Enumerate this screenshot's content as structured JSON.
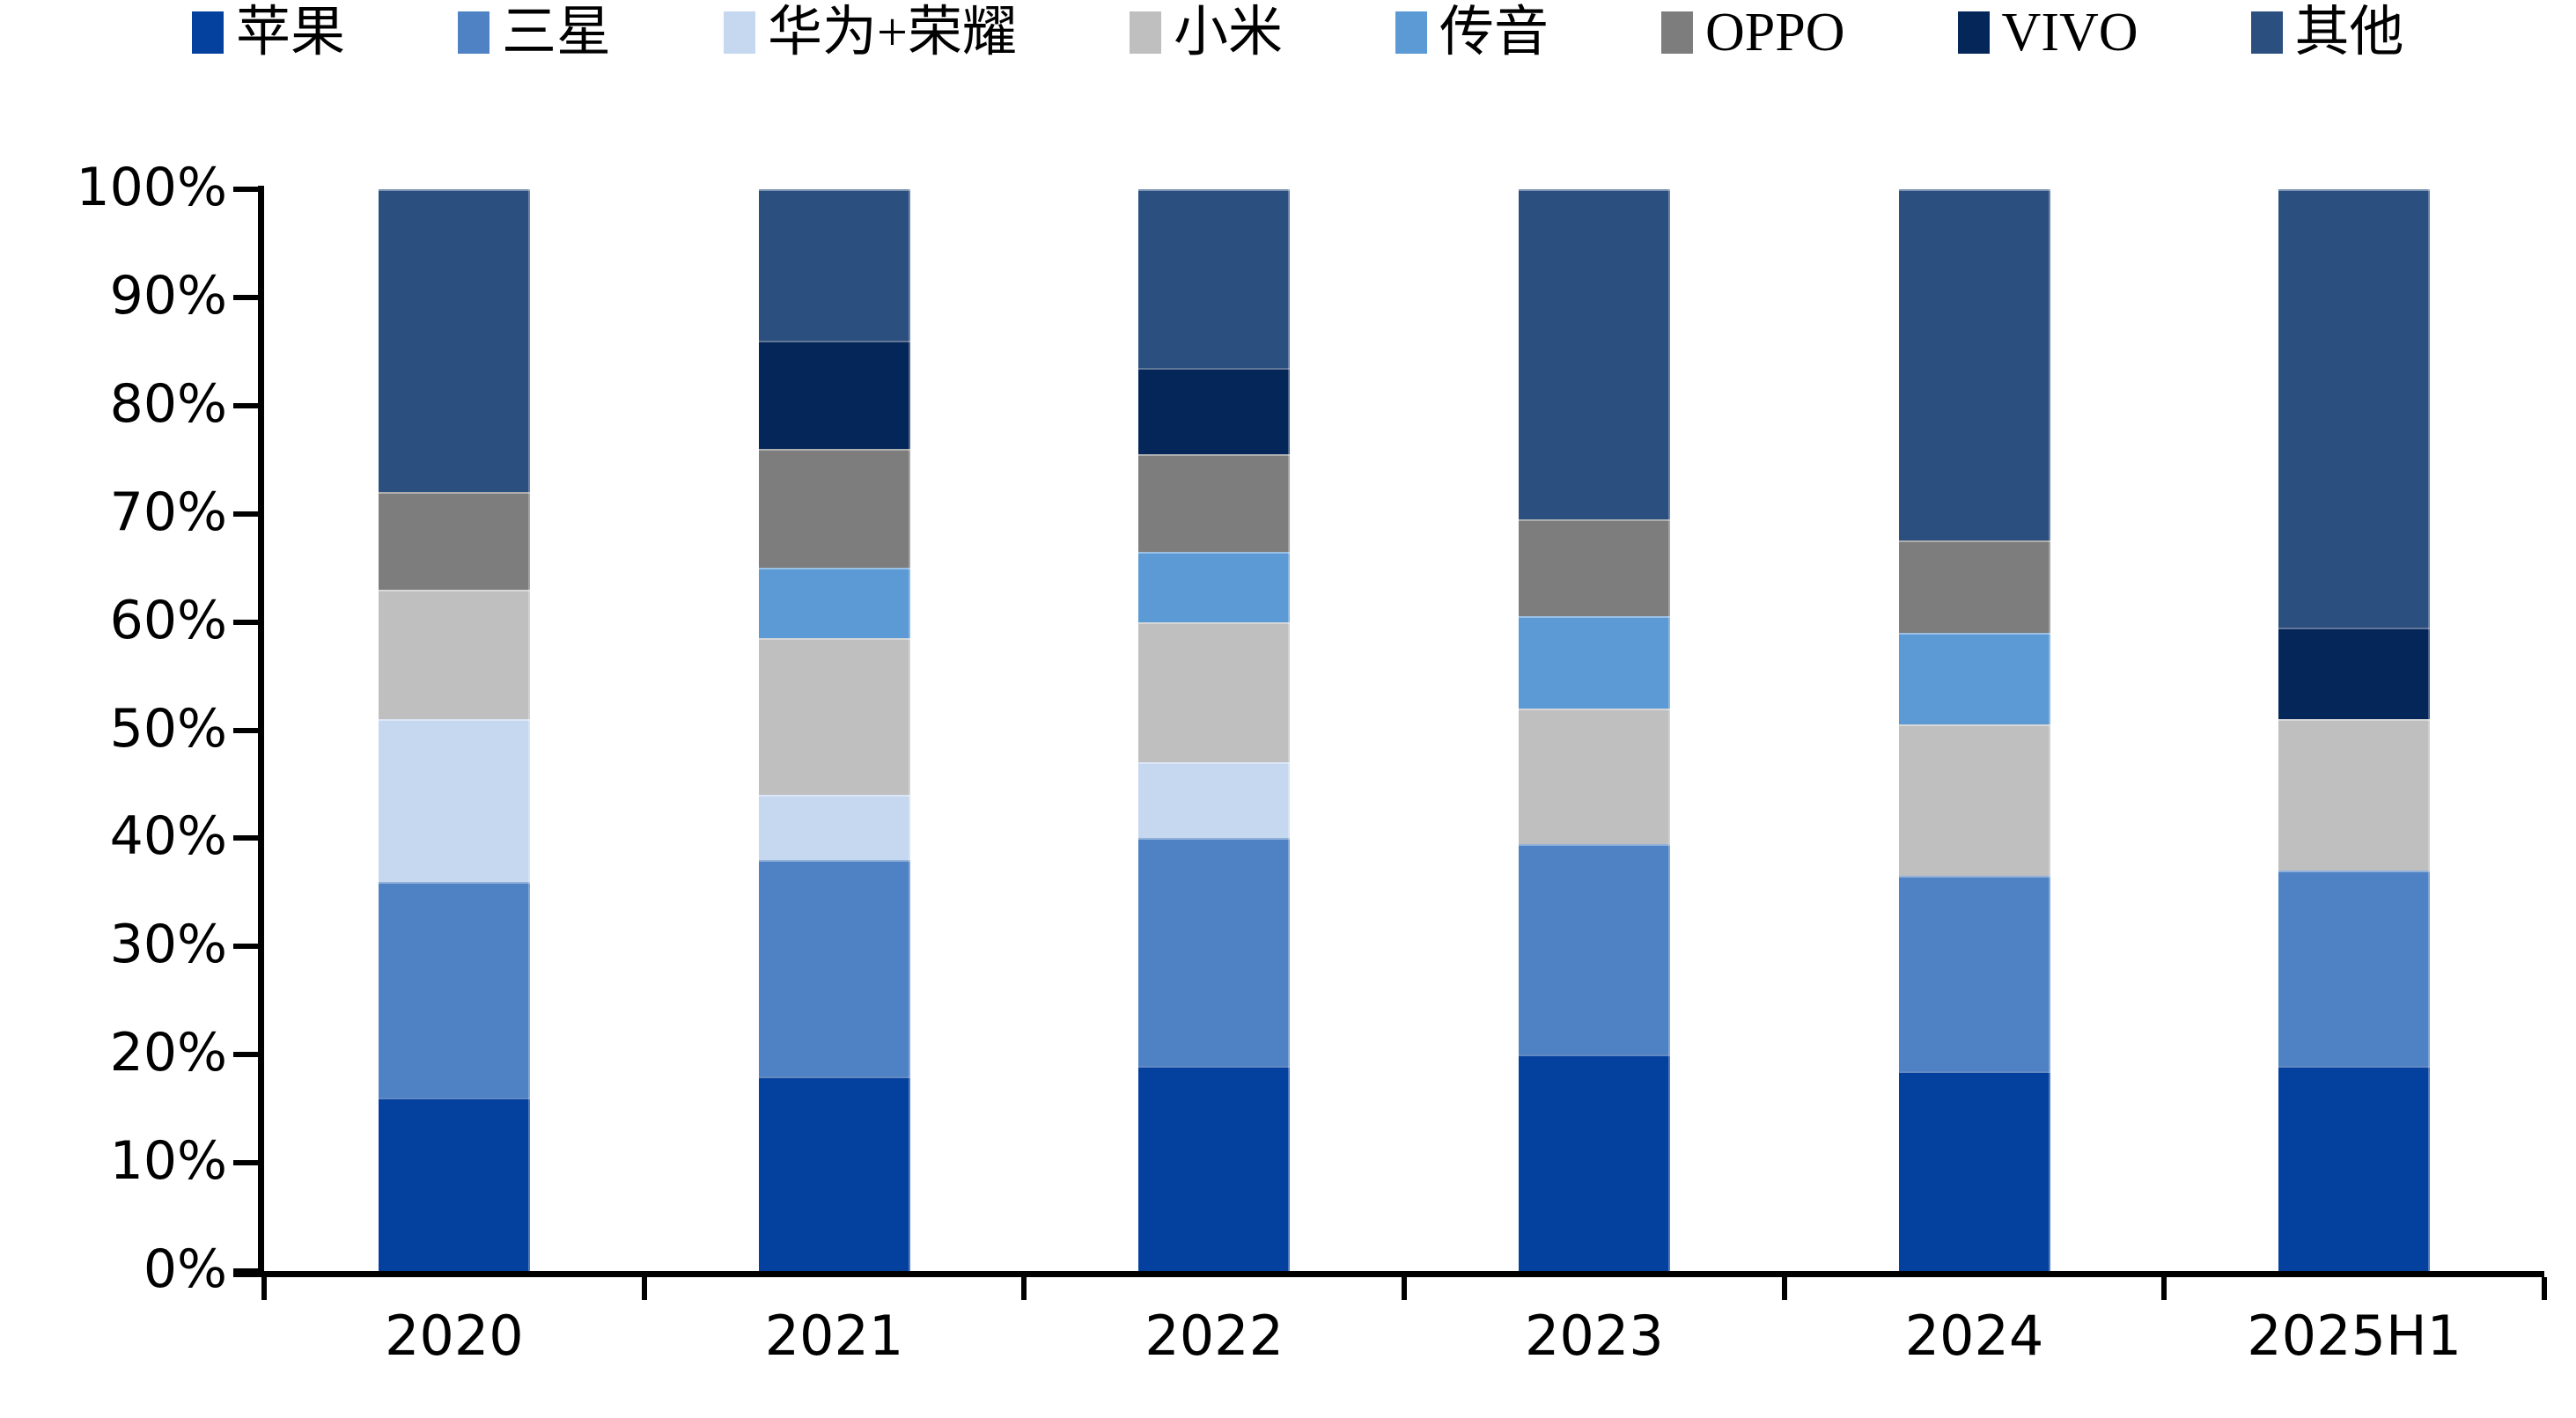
{
  "chart_data": {
    "type": "bar",
    "subtype": "stacked-100-percent-column",
    "title": "",
    "xlabel": "",
    "ylabel": "",
    "grid": false,
    "legend_position": "top",
    "ylim": [
      0,
      100
    ],
    "y_unit": "%",
    "y_ticks": [
      "100%",
      "90%",
      "80%",
      "70%",
      "60%",
      "50%",
      "40%",
      "30%",
      "20%",
      "10%",
      "0%"
    ],
    "categories": [
      "2020",
      "2021",
      "2022",
      "2023",
      "2024",
      "2025H1"
    ],
    "stack_order_bottom_to_top": [
      "苹果",
      "三星",
      "华为+荣耀",
      "小米",
      "传音",
      "OPPO",
      "VIVO",
      "其他"
    ],
    "series": [
      {
        "name": "苹果",
        "color": "#04419E",
        "values": [
          16,
          18,
          19,
          20,
          18.5,
          19
        ]
      },
      {
        "name": "三星",
        "color": "#4E82C4",
        "values": [
          20,
          20,
          21,
          19.5,
          18,
          18
        ]
      },
      {
        "name": "华为+荣耀",
        "color": "#C5D8F0",
        "values": [
          15,
          6,
          7,
          0,
          0,
          0
        ]
      },
      {
        "name": "小米",
        "color": "#BFBFBF",
        "values": [
          12,
          14.5,
          13,
          12.5,
          14,
          14
        ]
      },
      {
        "name": "传音",
        "color": "#5B9AD5",
        "values": [
          0,
          6.5,
          6.5,
          8.5,
          8.5,
          0
        ]
      },
      {
        "name": "OPPO",
        "color": "#7D7D7D",
        "values": [
          9,
          11,
          9,
          9,
          8.5,
          0
        ]
      },
      {
        "name": "VIVO",
        "color": "#042659",
        "values": [
          0,
          10,
          8,
          0,
          0,
          8.5
        ]
      },
      {
        "name": "其他",
        "color": "#2B5080",
        "values": [
          28,
          14,
          16.5,
          30.5,
          32.5,
          40.5
        ]
      }
    ],
    "axis_color": "#000000",
    "background_color": "#FFFFFF"
  }
}
